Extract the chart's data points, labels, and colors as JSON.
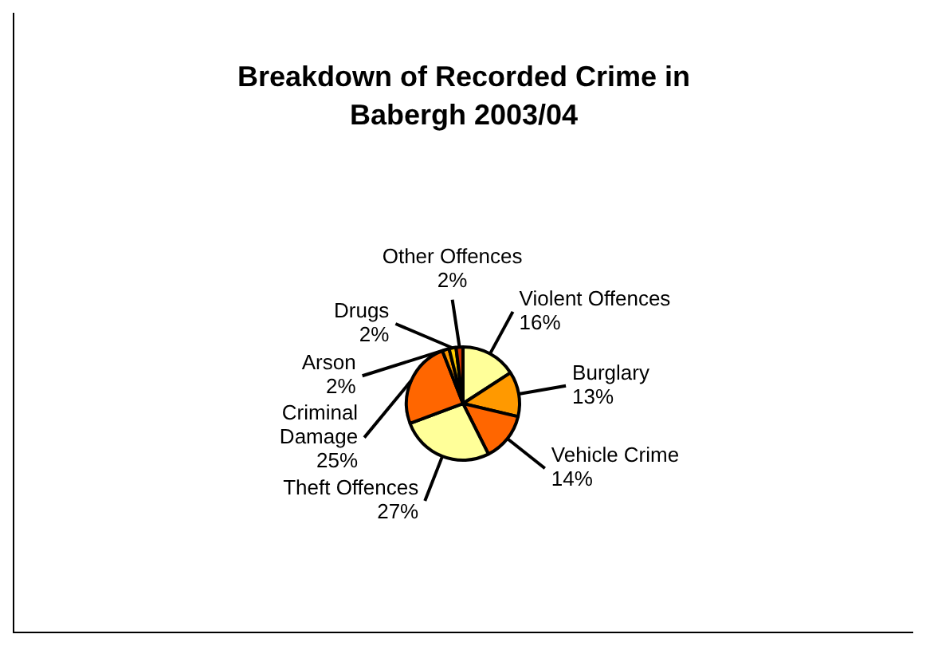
{
  "chart_data": {
    "type": "pie",
    "title": "Breakdown of Recorded Crime in Babergh 2003/04",
    "categories": [
      "Violent Offences",
      "Burglary",
      "Vehicle Crime",
      "Theft Offences",
      "Criminal Damage",
      "Arson",
      "Drugs",
      "Other Offences"
    ],
    "values": [
      16,
      13,
      14,
      27,
      25,
      2,
      2,
      2
    ],
    "value_labels": [
      "16%",
      "13%",
      "14%",
      "27%",
      "25%",
      "2%",
      "2%",
      "2%"
    ],
    "colors": [
      "#ffff99",
      "#ff9900",
      "#ff6600",
      "#ffff99",
      "#ff6600",
      "#ff9900",
      "#ffcc00",
      "#cc3300"
    ]
  }
}
